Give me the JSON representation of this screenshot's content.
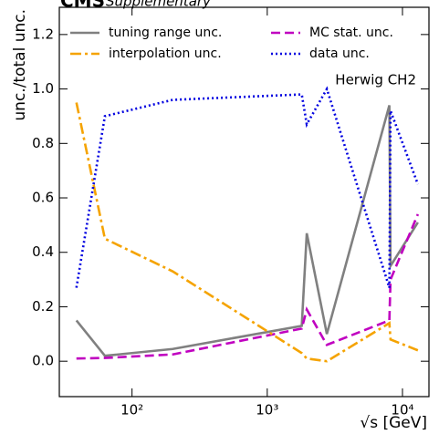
{
  "chart_data": {
    "type": "line",
    "title": "CMS",
    "subtitle": "Supplementary",
    "annotation": "Herwig CH2",
    "x_label": "√s [GeV]",
    "y_label": "unc./total unc.",
    "x": [
      38.8,
      63,
      200,
      1800,
      1960,
      2760,
      8000,
      8160,
      13000
    ],
    "series": [
      {
        "name": "tuning range unc.",
        "color": "#808080",
        "dash": "solid",
        "values": [
          0.15,
          0.02,
          0.045,
          0.13,
          0.47,
          0.1,
          0.94,
          0.35,
          0.51
        ]
      },
      {
        "name": "MC stat. unc.",
        "color": "#c000c0",
        "dash": "dashed",
        "values": [
          0.01,
          0.012,
          0.025,
          0.12,
          0.19,
          0.06,
          0.15,
          0.3,
          0.54
        ]
      },
      {
        "name": "interpolation unc.",
        "color": "#f5a300",
        "dash": "dashdot",
        "values": [
          0.95,
          0.45,
          0.33,
          0.03,
          0.01,
          0.0,
          0.14,
          0.08,
          0.04
        ]
      },
      {
        "name": "data unc.",
        "color": "#0000e0",
        "dash": "dotted",
        "values": [
          0.27,
          0.9,
          0.96,
          0.98,
          0.87,
          1.0,
          0.27,
          0.92,
          0.65
        ]
      }
    ],
    "xscale": "log",
    "xlim": [
      29,
      15700
    ],
    "xticks": [
      {
        "value": 100,
        "label": "10²"
      },
      {
        "value": 1000,
        "label": "10³"
      },
      {
        "value": 10000,
        "label": "10⁴"
      }
    ],
    "ylim": [
      -0.13,
      1.3
    ],
    "yticks": [
      {
        "value": 0,
        "label": "0.0"
      },
      {
        "value": 0.2,
        "label": "0.2"
      },
      {
        "value": 0.4,
        "label": "0.4"
      },
      {
        "value": 0.6,
        "label": "0.6"
      },
      {
        "value": 0.8,
        "label": "0.8"
      },
      {
        "value": 1.0,
        "label": "1.0"
      },
      {
        "value": 1.2,
        "label": "1.2"
      }
    ],
    "grid": false,
    "legend": "upper left"
  }
}
